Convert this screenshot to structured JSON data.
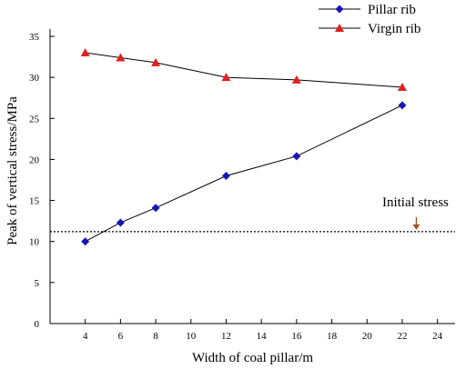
{
  "chart_data": {
    "type": "line",
    "xlabel": "Width of coal pillar/m",
    "ylabel": "Peak of vertical stress/MPa",
    "xlim": [
      2,
      25
    ],
    "ylim": [
      0,
      35
    ],
    "x_ticks": [
      4,
      6,
      8,
      10,
      12,
      14,
      16,
      18,
      20,
      22,
      24
    ],
    "y_ticks": [
      0,
      5,
      10,
      15,
      20,
      25,
      30,
      35
    ],
    "grid": false,
    "legend_position": "top-right",
    "series": [
      {
        "name": "Pillar rib",
        "marker": "diamond",
        "color": "#1515b8",
        "x": [
          4,
          6,
          8,
          12,
          16,
          22
        ],
        "y": [
          10.0,
          12.3,
          14.1,
          18.0,
          20.4,
          26.6
        ]
      },
      {
        "name": "Virgin rib",
        "marker": "triangle",
        "color": "#e02020",
        "x": [
          4,
          6,
          8,
          12,
          16,
          22
        ],
        "y": [
          33.0,
          32.4,
          31.8,
          30.0,
          29.7,
          28.8
        ]
      }
    ],
    "reference_line": {
      "label": "Initial stress",
      "y": 11.2,
      "arrow_x": 22.8,
      "arrow_color": "#a0521c"
    }
  }
}
